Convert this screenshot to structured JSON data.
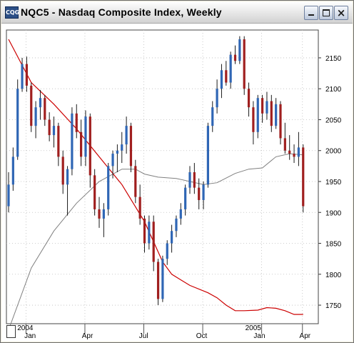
{
  "window": {
    "title": "NQC5 - Nasdaq Composite Index, Weekly",
    "app_icon_text": "CQG"
  },
  "chart_data": {
    "type": "candlestick",
    "title": "NQC5 - Nasdaq Composite Index, Weekly",
    "y_axis_side": "right",
    "ylim": [
      1720,
      2195
    ],
    "y_ticks": [
      1750,
      1800,
      1850,
      1900,
      1950,
      2000,
      2050,
      2100,
      2150
    ],
    "x_labels": [
      "Jan",
      "Apr",
      "Jul",
      "Oct",
      "Jan",
      "Apr"
    ],
    "year_labels": [
      "2004",
      "2005"
    ],
    "grid": true,
    "colors": {
      "up": "#2f66b5",
      "down": "#a01f1f",
      "ma_long": "#cc0000",
      "ma_short": "#808080"
    },
    "candles": [
      [
        1910,
        1965,
        1900,
        1945
      ],
      [
        1945,
        2005,
        1935,
        1990
      ],
      [
        1990,
        2115,
        1985,
        2100
      ],
      [
        2100,
        2150,
        2095,
        2140
      ],
      [
        2140,
        2152,
        2095,
        2105
      ],
      [
        2105,
        2110,
        2030,
        2040
      ],
      [
        2040,
        2080,
        2020,
        2070
      ],
      [
        2070,
        2098,
        2050,
        2085
      ],
      [
        2085,
        2090,
        2040,
        2050
      ],
      [
        2050,
        2062,
        2015,
        2025
      ],
      [
        2025,
        2055,
        2005,
        2040
      ],
      [
        2040,
        2045,
        1975,
        1990
      ],
      [
        1990,
        2000,
        1930,
        1945
      ],
      [
        1945,
        1975,
        1895,
        1970
      ],
      [
        1970,
        2070,
        1960,
        2060
      ],
      [
        2060,
        2075,
        2020,
        2030
      ],
      [
        2030,
        2050,
        1975,
        1990
      ],
      [
        1990,
        2065,
        1975,
        2055
      ],
      [
        2055,
        2060,
        1940,
        1960
      ],
      [
        1960,
        1970,
        1895,
        1905
      ],
      [
        1905,
        1925,
        1875,
        1890
      ],
      [
        1890,
        1915,
        1860,
        1905
      ],
      [
        1905,
        1980,
        1895,
        1975
      ],
      [
        1975,
        2000,
        1955,
        1995
      ],
      [
        1995,
        2010,
        1965,
        2000
      ],
      [
        2000,
        2030,
        1980,
        2010
      ],
      [
        2010,
        2055,
        1995,
        2040
      ],
      [
        2040,
        2045,
        1965,
        1975
      ],
      [
        1975,
        1985,
        1915,
        1925
      ],
      [
        1925,
        1945,
        1880,
        1890
      ],
      [
        1890,
        1895,
        1835,
        1850
      ],
      [
        1850,
        1895,
        1840,
        1885
      ],
      [
        1885,
        1895,
        1805,
        1820
      ],
      [
        1820,
        1825,
        1750,
        1760
      ],
      [
        1760,
        1830,
        1755,
        1825
      ],
      [
        1825,
        1855,
        1815,
        1850
      ],
      [
        1850,
        1880,
        1835,
        1870
      ],
      [
        1870,
        1895,
        1860,
        1890
      ],
      [
        1890,
        1915,
        1880,
        1905
      ],
      [
        1905,
        1945,
        1895,
        1940
      ],
      [
        1940,
        1975,
        1930,
        1965
      ],
      [
        1965,
        1980,
        1930,
        1940
      ],
      [
        1940,
        1955,
        1905,
        1920
      ],
      [
        1920,
        1950,
        1905,
        1945
      ],
      [
        1945,
        2045,
        1940,
        2040
      ],
      [
        2040,
        2080,
        2030,
        2070
      ],
      [
        2070,
        2115,
        2060,
        2100
      ],
      [
        2100,
        2140,
        2085,
        2130
      ],
      [
        2130,
        2145,
        2105,
        2110
      ],
      [
        2110,
        2160,
        2100,
        2155
      ],
      [
        2155,
        2170,
        2140,
        2145
      ],
      [
        2145,
        2185,
        2140,
        2180
      ],
      [
        2180,
        2185,
        2090,
        2100
      ],
      [
        2100,
        2110,
        2055,
        2070
      ],
      [
        2070,
        2080,
        2010,
        2030
      ],
      [
        2030,
        2090,
        2020,
        2085
      ],
      [
        2085,
        2090,
        2045,
        2060
      ],
      [
        2060,
        2095,
        2050,
        2080
      ],
      [
        2080,
        2090,
        2030,
        2040
      ],
      [
        2040,
        2085,
        2035,
        2075
      ],
      [
        2075,
        2080,
        2010,
        2020
      ],
      [
        2020,
        2045,
        1995,
        2000
      ],
      [
        2000,
        2025,
        1985,
        1995
      ],
      [
        1995,
        2010,
        1980,
        1990
      ],
      [
        1990,
        2030,
        1975,
        2005
      ],
      [
        2005,
        2010,
        1900,
        1910
      ]
    ],
    "ma_long": [
      [
        0,
        2180
      ],
      [
        5,
        2110
      ],
      [
        10,
        2075
      ],
      [
        15,
        2035
      ],
      [
        20,
        1990
      ],
      [
        25,
        1945
      ],
      [
        30,
        1885
      ],
      [
        34,
        1820
      ],
      [
        36,
        1800
      ],
      [
        40,
        1782
      ],
      [
        44,
        1770
      ],
      [
        46,
        1762
      ],
      [
        48,
        1750
      ],
      [
        50,
        1741
      ],
      [
        52,
        1741
      ],
      [
        55,
        1742
      ],
      [
        57,
        1746
      ],
      [
        59,
        1745
      ],
      [
        61,
        1741
      ],
      [
        63,
        1735
      ],
      [
        65,
        1735
      ]
    ],
    "ma_short": [
      [
        0,
        1710
      ],
      [
        5,
        1810
      ],
      [
        10,
        1870
      ],
      [
        15,
        1915
      ],
      [
        20,
        1950
      ],
      [
        25,
        1970
      ],
      [
        28,
        1970
      ],
      [
        30,
        1962
      ],
      [
        33,
        1957
      ],
      [
        37,
        1955
      ],
      [
        40,
        1950
      ],
      [
        43,
        1945
      ],
      [
        46,
        1948
      ],
      [
        50,
        1963
      ],
      [
        53,
        1970
      ],
      [
        56,
        1972
      ],
      [
        59,
        1990
      ],
      [
        62,
        1995
      ],
      [
        65,
        1993
      ]
    ]
  }
}
